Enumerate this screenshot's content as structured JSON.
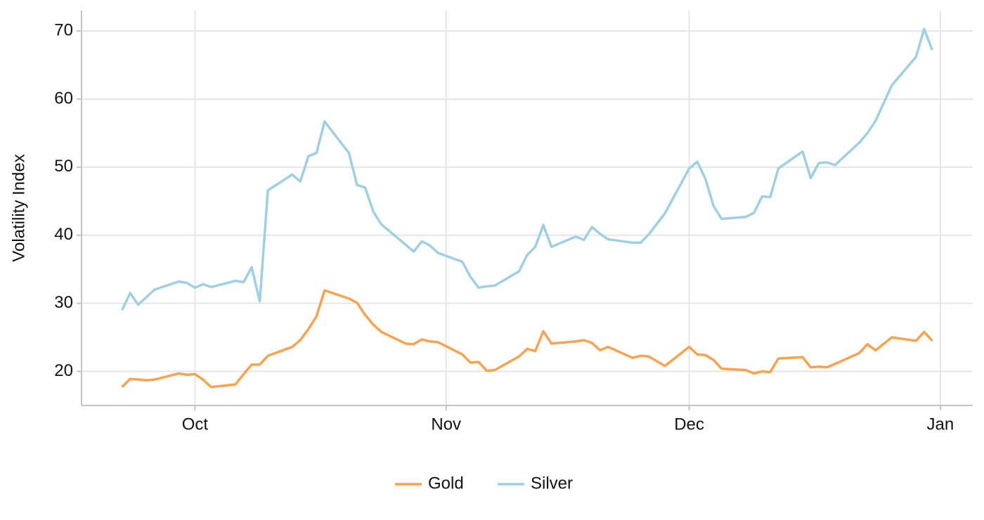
{
  "chart_data": {
    "type": "line",
    "y_label": "Volatility Index",
    "x": [
      -9,
      -8,
      -7,
      -6,
      -5,
      -2,
      -1,
      0,
      1,
      2,
      5,
      6,
      7,
      8,
      9,
      12,
      13,
      14,
      15,
      16,
      19,
      20,
      21,
      22,
      23,
      26,
      27,
      28,
      29,
      30,
      33,
      34,
      35,
      36,
      37,
      40,
      41,
      42,
      43,
      44,
      47,
      48,
      49,
      50,
      51,
      54,
      55,
      56,
      58,
      61,
      62,
      63,
      64,
      65,
      68,
      69,
      70,
      71,
      72,
      75,
      76,
      77,
      78,
      79,
      82,
      83,
      84,
      86,
      89,
      90,
      91
    ],
    "series": [
      {
        "name": "Gold",
        "color": "#f9a24f",
        "values": [
          17.7,
          18.9,
          18.8,
          18.7,
          18.8,
          19.7,
          19.5,
          19.6,
          18.8,
          17.7,
          18.1,
          19.6,
          21,
          21,
          22.3,
          23.6,
          24.6,
          26.2,
          28.1,
          31.9,
          30.7,
          30.1,
          28.3,
          26.9,
          25.8,
          24.1,
          24,
          24.7,
          24.4,
          24.3,
          22.5,
          21.3,
          21.4,
          20.1,
          20.2,
          22.2,
          23.3,
          23,
          25.9,
          24.1,
          24.4,
          24.6,
          24.2,
          23.1,
          23.6,
          22,
          22.3,
          22.2,
          20.8,
          23.6,
          22.5,
          22.4,
          21.7,
          20.4,
          20.2,
          19.7,
          20,
          19.9,
          21.9,
          22.1,
          20.6,
          20.7,
          20.6,
          21.1,
          22.7,
          24,
          23.1,
          25,
          24.5,
          25.8,
          24.5
        ]
      },
      {
        "name": "Silver",
        "color": "#9fd0e2",
        "values": [
          29,
          31.5,
          29.8,
          30.9,
          32,
          33.2,
          33,
          32.3,
          32.8,
          32.4,
          33.3,
          33.1,
          35.3,
          30.3,
          46.6,
          48.9,
          47.9,
          51.6,
          52.1,
          56.7,
          52.1,
          47.4,
          47,
          43.5,
          41.6,
          38.6,
          37.6,
          39.1,
          38.5,
          37.4,
          36.1,
          33.9,
          32.3,
          32.5,
          32.6,
          34.7,
          37.1,
          38.3,
          41.5,
          38.3,
          39.8,
          39.3,
          41.2,
          40.2,
          39.4,
          38.9,
          38.9,
          40.1,
          43.2,
          49.8,
          50.8,
          48.3,
          44.3,
          42.4,
          42.7,
          43.3,
          45.7,
          45.6,
          49.8,
          52.3,
          48.4,
          50.6,
          50.7,
          50.3,
          53.6,
          55,
          56.8,
          62,
          66.2,
          70.3,
          67.2
        ]
      }
    ],
    "xlim": [
      -14,
      96
    ],
    "xticks": [
      {
        "value": 0,
        "label": "Oct"
      },
      {
        "value": 31,
        "label": "Nov"
      },
      {
        "value": 61,
        "label": "Dec"
      },
      {
        "value": 92,
        "label": "Jan"
      }
    ],
    "ylim": [
      15,
      73
    ],
    "yticks": [
      20,
      30,
      40,
      50,
      60,
      70
    ],
    "grid": true,
    "legend": "bottom"
  }
}
